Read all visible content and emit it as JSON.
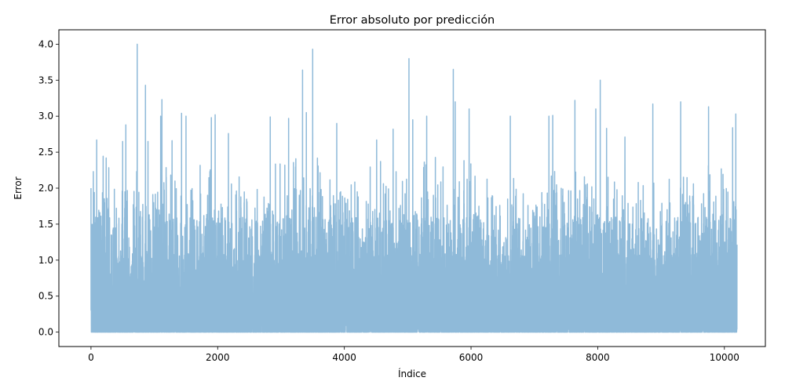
{
  "chart_data": {
    "type": "line",
    "title": "Error absoluto por predicción",
    "xlabel": "Índice",
    "ylabel": "Error",
    "xlim": [
      -507,
      10647
    ],
    "ylim": [
      -0.2,
      4.2
    ],
    "xticks": [
      0,
      2000,
      4000,
      6000,
      8000,
      10000
    ],
    "yticks": [
      0.0,
      0.5,
      1.0,
      1.5,
      2.0,
      2.5,
      3.0,
      3.5,
      4.0
    ],
    "ytick_labels": [
      "0.0",
      "0.5",
      "1.0",
      "1.5",
      "2.0",
      "2.5",
      "3.0",
      "3.5",
      "4.0"
    ],
    "grid": false,
    "series": [
      {
        "color": "#8fbad9",
        "n_points": 10200,
        "peaks": [
          {
            "x": 0,
            "y": 2.0
          },
          {
            "x": 90,
            "y": 2.67
          },
          {
            "x": 240,
            "y": 2.42
          },
          {
            "x": 500,
            "y": 2.65
          },
          {
            "x": 550,
            "y": 2.88
          },
          {
            "x": 730,
            "y": 4.0
          },
          {
            "x": 860,
            "y": 3.43
          },
          {
            "x": 900,
            "y": 2.65
          },
          {
            "x": 1100,
            "y": 3.0
          },
          {
            "x": 1120,
            "y": 3.23
          },
          {
            "x": 1280,
            "y": 2.66
          },
          {
            "x": 1430,
            "y": 3.04
          },
          {
            "x": 1500,
            "y": 3.0
          },
          {
            "x": 1900,
            "y": 2.98
          },
          {
            "x": 1960,
            "y": 3.02
          },
          {
            "x": 2170,
            "y": 2.76
          },
          {
            "x": 2830,
            "y": 2.99
          },
          {
            "x": 3120,
            "y": 2.97
          },
          {
            "x": 3340,
            "y": 3.64
          },
          {
            "x": 3400,
            "y": 3.05
          },
          {
            "x": 3500,
            "y": 3.93
          },
          {
            "x": 3880,
            "y": 2.9
          },
          {
            "x": 4510,
            "y": 2.67
          },
          {
            "x": 4770,
            "y": 2.82
          },
          {
            "x": 5020,
            "y": 3.8
          },
          {
            "x": 5080,
            "y": 2.95
          },
          {
            "x": 5300,
            "y": 3.0
          },
          {
            "x": 5720,
            "y": 3.65
          },
          {
            "x": 5750,
            "y": 3.2
          },
          {
            "x": 5970,
            "y": 3.1
          },
          {
            "x": 6620,
            "y": 3.0
          },
          {
            "x": 7230,
            "y": 3.0
          },
          {
            "x": 7290,
            "y": 3.01
          },
          {
            "x": 7640,
            "y": 3.22
          },
          {
            "x": 7970,
            "y": 3.1
          },
          {
            "x": 8040,
            "y": 3.5
          },
          {
            "x": 8140,
            "y": 2.83
          },
          {
            "x": 8430,
            "y": 2.71
          },
          {
            "x": 8870,
            "y": 3.17
          },
          {
            "x": 9310,
            "y": 3.2
          },
          {
            "x": 9750,
            "y": 3.13
          },
          {
            "x": 10130,
            "y": 2.84
          },
          {
            "x": 10180,
            "y": 3.03
          }
        ]
      }
    ]
  }
}
